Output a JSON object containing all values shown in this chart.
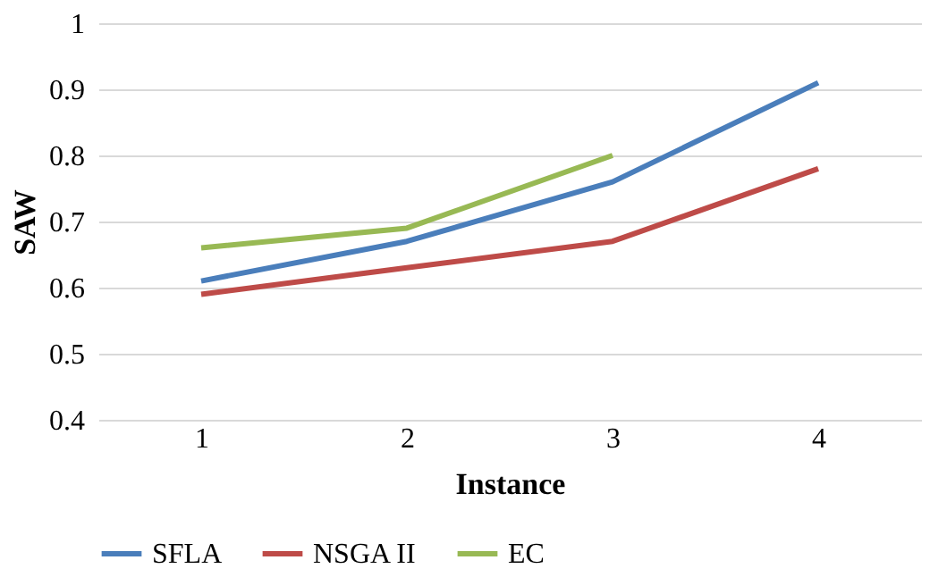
{
  "chart_data": {
    "type": "line",
    "xlabel": "Instance",
    "ylabel": "SAW",
    "categories": [
      "1",
      "2",
      "3",
      "4"
    ],
    "series": [
      {
        "name": "SFLA",
        "color": "#4a7ebb",
        "values": [
          0.61,
          0.67,
          0.76,
          0.91
        ]
      },
      {
        "name": "NSGA II",
        "color": "#be4b48",
        "values": [
          0.59,
          0.63,
          0.67,
          0.78
        ]
      },
      {
        "name": "EC",
        "color": "#98b954",
        "values": [
          0.66,
          0.69,
          0.8,
          null
        ]
      }
    ],
    "ylim": [
      0.4,
      1
    ],
    "yticks": [
      0.4,
      0.5,
      0.6,
      0.7,
      0.8,
      0.9,
      1
    ],
    "grid": "y",
    "legend": "bottom",
    "marker": "none",
    "line_style": "solid"
  }
}
